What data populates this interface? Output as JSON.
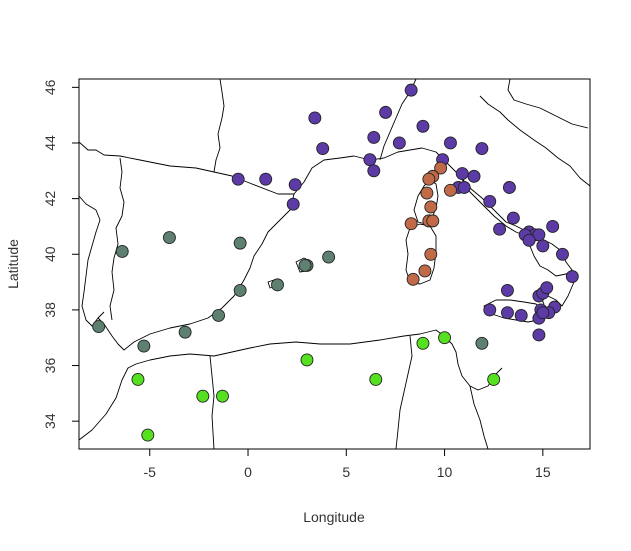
{
  "chart_data": {
    "type": "scatter",
    "title": "",
    "xlabel": "Longitude",
    "ylabel": "Latitude",
    "xlim": [
      -8.6,
      17.4
    ],
    "ylim": [
      33.0,
      46.3
    ],
    "xticks": [
      -5,
      0,
      5,
      10,
      15
    ],
    "yticks": [
      34,
      36,
      38,
      40,
      42,
      44,
      46
    ],
    "grid": false,
    "legend": "none",
    "background_layer": "coastlines",
    "colors": {
      "purple": "#5c3ba6",
      "rust": "#c06a48",
      "grey_green": "#5d8070",
      "bright_green": "#55e020"
    },
    "series": [
      {
        "color": "purple",
        "x": [
          8.3,
          3.4,
          3.8,
          7.0,
          6.4,
          6.2,
          6.4,
          7.7,
          8.9,
          9.9,
          10.3,
          11.9,
          11.5,
          10.7,
          11.0,
          10.9,
          12.3,
          13.3,
          12.8,
          13.5,
          14.3,
          14.6,
          14.8,
          15.5,
          14.1,
          14.3,
          15.0,
          16.0,
          16.5,
          13.2,
          13.2,
          13.9,
          14.8,
          15.0,
          15.2,
          14.9,
          15.6,
          15.3,
          14.8,
          15.0,
          14.8,
          12.3,
          -0.5,
          0.9,
          2.4,
          2.3
        ],
        "y": [
          45.9,
          44.9,
          43.8,
          45.1,
          44.2,
          43.4,
          43.0,
          44.0,
          44.6,
          43.4,
          44.0,
          43.8,
          42.8,
          42.4,
          42.4,
          42.9,
          41.9,
          42.4,
          40.9,
          41.3,
          40.8,
          40.7,
          40.7,
          41.0,
          40.7,
          40.5,
          40.3,
          40.0,
          39.2,
          38.7,
          37.9,
          37.8,
          38.5,
          38.6,
          38.8,
          38.0,
          38.1,
          37.9,
          37.7,
          37.9,
          37.1,
          38.0,
          42.7,
          42.7,
          42.5,
          41.8
        ],
        "marker": "circle"
      },
      {
        "color": "rust",
        "x": [
          9.8,
          9.4,
          9.2,
          9.1,
          9.3,
          9.2,
          9.4,
          8.3,
          9.3,
          9.0,
          8.4,
          10.3
        ],
        "y": [
          43.1,
          42.8,
          42.7,
          42.2,
          41.7,
          41.2,
          41.2,
          41.1,
          40.0,
          39.4,
          39.1,
          42.3
        ],
        "marker": "circle"
      },
      {
        "color": "grey_green",
        "x": [
          -4.0,
          -0.4,
          -6.4,
          -0.4,
          1.5,
          3.0,
          4.1,
          -1.5,
          -3.2,
          -7.6,
          -5.3,
          11.9,
          2.9
        ],
        "y": [
          40.6,
          40.4,
          40.1,
          38.7,
          38.9,
          39.6,
          39.9,
          37.8,
          37.2,
          37.4,
          36.7,
          36.8,
          39.6
        ],
        "marker": "circle"
      },
      {
        "color": "bright_green",
        "x": [
          10.0,
          8.9,
          3.0,
          6.5,
          12.5,
          -5.6,
          -2.3,
          -1.3,
          -5.1
        ],
        "y": [
          37.0,
          36.8,
          36.2,
          35.5,
          35.5,
          35.5,
          34.9,
          34.9,
          33.5
        ],
        "marker": "circle"
      }
    ]
  }
}
